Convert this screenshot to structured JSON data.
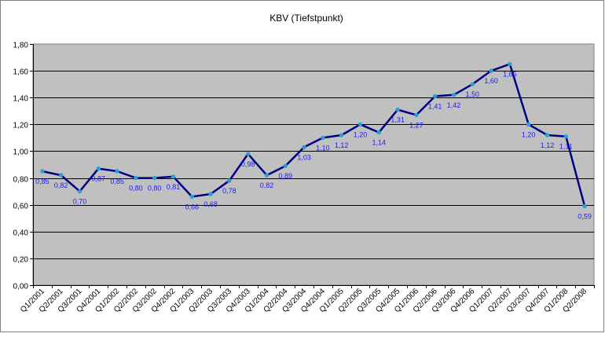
{
  "chart_data": {
    "type": "line",
    "title": "KBV (Tiefstpunkt)",
    "xlabel": "",
    "ylabel": "",
    "ylim": [
      0,
      1.8
    ],
    "ytick_step": 0.2,
    "grid": true,
    "legend": "none",
    "categories": [
      "Q1/2001",
      "Q2/2001",
      "Q3/2001",
      "Q4/2001",
      "Q1/2002",
      "Q2/2002",
      "Q3/2002",
      "Q4/2002",
      "Q1/2003",
      "Q2/2003",
      "Q3/2003",
      "Q4/2003",
      "Q1/2004",
      "Q2/2004",
      "Q3/2004",
      "Q4/2004",
      "Q1/2005",
      "Q2/2005",
      "Q3/2005",
      "Q4/2005",
      "Q1/2006",
      "Q2/2006",
      "Q3/2006",
      "Q4/2006",
      "Q1/2007",
      "Q2/2007",
      "Q3/2007",
      "Q4/2007",
      "Q1/2008",
      "Q2/2008"
    ],
    "series": [
      {
        "values": [
          0.85,
          0.82,
          0.7,
          0.87,
          0.85,
          0.8,
          0.8,
          0.81,
          0.66,
          0.68,
          0.78,
          0.98,
          0.82,
          0.89,
          1.03,
          1.1,
          1.12,
          1.2,
          1.14,
          1.31,
          1.27,
          1.41,
          1.42,
          1.5,
          1.6,
          1.65,
          1.2,
          1.12,
          1.11,
          0.59
        ],
        "labels": [
          "0,85",
          "0,82",
          "0,70",
          "0,87",
          "0,85",
          "0,80",
          "0,80",
          "0,81",
          "0,66",
          "0,68",
          "0,78",
          "0,98",
          "0,82",
          "0,89",
          "1,03",
          "1,10",
          "1,12",
          "1,20",
          "1,14",
          "1,31",
          "1,27",
          "1,41",
          "1,42",
          "1,50",
          "1,60",
          "1,65",
          "1,20",
          "1,12",
          "1,11",
          "0,59"
        ]
      }
    ],
    "y_tick_labels": [
      "0,00",
      "0,20",
      "0,40",
      "0,60",
      "0,80",
      "1,00",
      "1,20",
      "1,40",
      "1,60",
      "1,80"
    ],
    "colors": {
      "plot_background": "#c0c0c0",
      "line": "#000080",
      "marker": "#2a9fd6",
      "data_label": "#1a1aff",
      "grid": "#000000"
    }
  }
}
